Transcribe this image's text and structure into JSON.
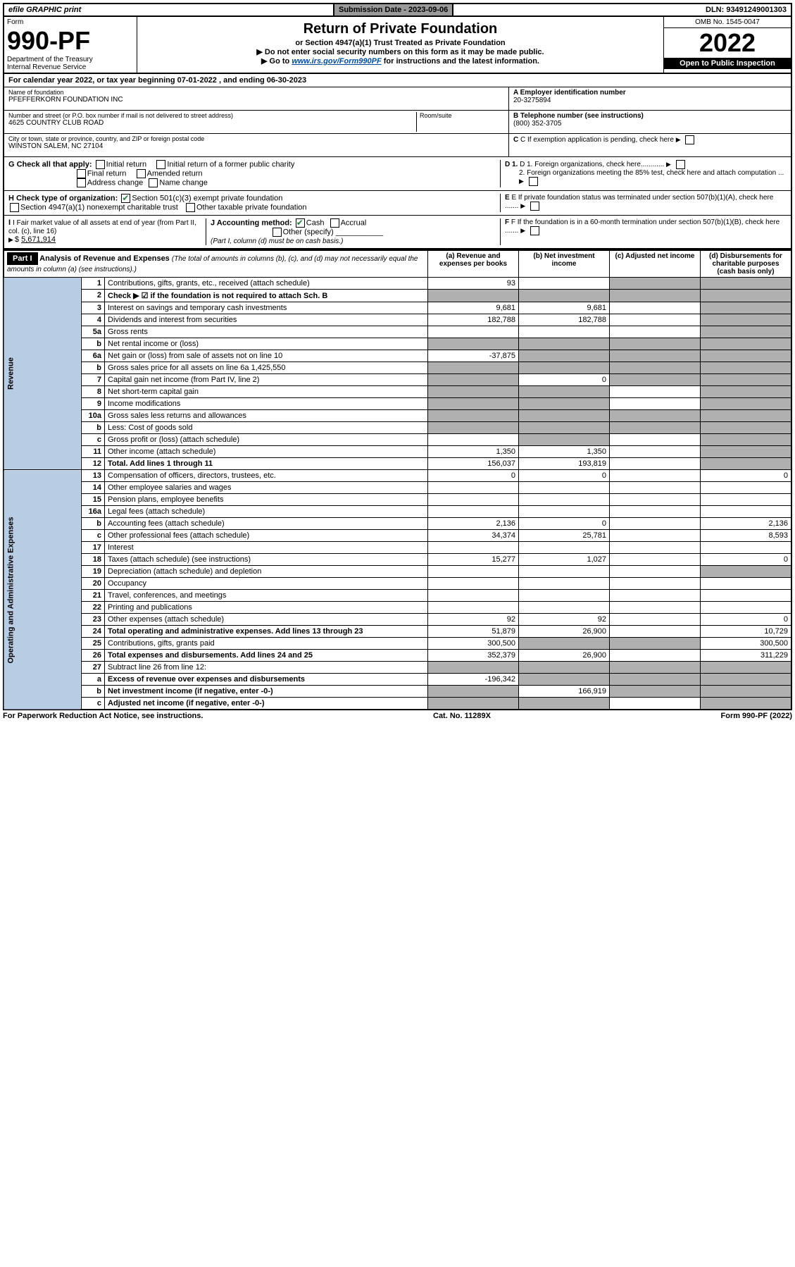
{
  "top": {
    "efile": "efile GRAPHIC print",
    "submission_label": "Submission Date - 2023-09-06",
    "dln": "DLN: 93491249001303"
  },
  "header": {
    "form_label": "Form",
    "form_number": "990-PF",
    "dept": "Department of the Treasury",
    "irs": "Internal Revenue Service",
    "title": "Return of Private Foundation",
    "subtitle": "or Section 4947(a)(1) Trust Treated as Private Foundation",
    "instr1": "▶ Do not enter social security numbers on this form as it may be made public.",
    "instr2_prefix": "▶ Go to ",
    "instr2_link": "www.irs.gov/Form990PF",
    "instr2_suffix": " for instructions and the latest information.",
    "omb": "OMB No. 1545-0047",
    "year": "2022",
    "open": "Open to Public Inspection"
  },
  "calendar": "For calendar year 2022, or tax year beginning 07-01-2022                      , and ending 06-30-2023",
  "entity": {
    "name_label": "Name of foundation",
    "name": "PFEFFERKORN FOUNDATION INC",
    "addr_label": "Number and street (or P.O. box number if mail is not delivered to street address)",
    "addr": "4625 COUNTRY CLUB ROAD",
    "room_label": "Room/suite",
    "city_label": "City or town, state or province, country, and ZIP or foreign postal code",
    "city": "WINSTON SALEM, NC  27104",
    "ein_label": "A Employer identification number",
    "ein": "20-3275894",
    "phone_label": "B Telephone number (see instructions)",
    "phone": "(800) 352-3705",
    "c_label": "C If exemption application is pending, check here",
    "d1": "D 1. Foreign organizations, check here............",
    "d2": "2. Foreign organizations meeting the 85% test, check here and attach computation ...",
    "e_label": "E If private foundation status was terminated under section 507(b)(1)(A), check here .......",
    "f_label": "F If the foundation is in a 60-month termination under section 507(b)(1)(B), check here ......."
  },
  "g_check": {
    "label": "G Check all that apply:",
    "opts": [
      "Initial return",
      "Initial return of a former public charity",
      "Final return",
      "Amended return",
      "Address change",
      "Name change"
    ]
  },
  "h_check": {
    "label": "H Check type of organization:",
    "opt1": "Section 501(c)(3) exempt private foundation",
    "opt2": "Section 4947(a)(1) nonexempt charitable trust",
    "opt3": "Other taxable private foundation"
  },
  "i_block": {
    "label": "I Fair market value of all assets at end of year (from Part II, col. (c), line 16)",
    "value": "5,671,914"
  },
  "j_block": {
    "label": "J Accounting method:",
    "cash": "Cash",
    "accrual": "Accrual",
    "other": "Other (specify)",
    "note": "(Part I, column (d) must be on cash basis.)"
  },
  "part1": {
    "label": "Part I",
    "title": "Analysis of Revenue and Expenses",
    "title_note": "(The total of amounts in columns (b), (c), and (d) may not necessarily equal the amounts in column (a) (see instructions).)",
    "col_a": "(a) Revenue and expenses per books",
    "col_b": "(b) Net investment income",
    "col_c": "(c) Adjusted net income",
    "col_d": "(d) Disbursements for charitable purposes (cash basis only)"
  },
  "side_labels": {
    "revenue": "Revenue",
    "opex": "Operating and Administrative Expenses"
  },
  "rows": [
    {
      "n": "1",
      "d": "Contributions, gifts, grants, etc., received (attach schedule)",
      "a": "93",
      "b": "",
      "c": "shaded",
      "dd": "shaded"
    },
    {
      "n": "2",
      "d": "Check ▶ ☑ if the foundation is not required to attach Sch. B",
      "a": "shaded",
      "b": "shaded",
      "c": "shaded",
      "dd": "shaded",
      "bold": true
    },
    {
      "n": "3",
      "d": "Interest on savings and temporary cash investments",
      "a": "9,681",
      "b": "9,681",
      "c": "",
      "dd": "shaded"
    },
    {
      "n": "4",
      "d": "Dividends and interest from securities",
      "a": "182,788",
      "b": "182,788",
      "c": "",
      "dd": "shaded"
    },
    {
      "n": "5a",
      "d": "Gross rents",
      "a": "",
      "b": "",
      "c": "",
      "dd": "shaded"
    },
    {
      "n": "b",
      "d": "Net rental income or (loss)",
      "a": "shaded",
      "b": "shaded",
      "c": "shaded",
      "dd": "shaded"
    },
    {
      "n": "6a",
      "d": "Net gain or (loss) from sale of assets not on line 10",
      "a": "-37,875",
      "b": "shaded",
      "c": "shaded",
      "dd": "shaded"
    },
    {
      "n": "b",
      "d": "Gross sales price for all assets on line 6a           1,425,550",
      "a": "shaded",
      "b": "shaded",
      "c": "shaded",
      "dd": "shaded"
    },
    {
      "n": "7",
      "d": "Capital gain net income (from Part IV, line 2)",
      "a": "shaded",
      "b": "0",
      "c": "shaded",
      "dd": "shaded"
    },
    {
      "n": "8",
      "d": "Net short-term capital gain",
      "a": "shaded",
      "b": "shaded",
      "c": "",
      "dd": "shaded"
    },
    {
      "n": "9",
      "d": "Income modifications",
      "a": "shaded",
      "b": "shaded",
      "c": "",
      "dd": "shaded"
    },
    {
      "n": "10a",
      "d": "Gross sales less returns and allowances",
      "a": "shaded",
      "b": "shaded",
      "c": "shaded",
      "dd": "shaded"
    },
    {
      "n": "b",
      "d": "Less: Cost of goods sold",
      "a": "shaded",
      "b": "shaded",
      "c": "shaded",
      "dd": "shaded"
    },
    {
      "n": "c",
      "d": "Gross profit or (loss) (attach schedule)",
      "a": "",
      "b": "shaded",
      "c": "",
      "dd": "shaded"
    },
    {
      "n": "11",
      "d": "Other income (attach schedule)",
      "a": "1,350",
      "b": "1,350",
      "c": "",
      "dd": "shaded"
    },
    {
      "n": "12",
      "d": "Total. Add lines 1 through 11",
      "a": "156,037",
      "b": "193,819",
      "c": "",
      "dd": "shaded",
      "bold": true
    },
    {
      "n": "13",
      "d": "Compensation of officers, directors, trustees, etc.",
      "a": "0",
      "b": "0",
      "c": "",
      "dd": "0"
    },
    {
      "n": "14",
      "d": "Other employee salaries and wages",
      "a": "",
      "b": "",
      "c": "",
      "dd": ""
    },
    {
      "n": "15",
      "d": "Pension plans, employee benefits",
      "a": "",
      "b": "",
      "c": "",
      "dd": ""
    },
    {
      "n": "16a",
      "d": "Legal fees (attach schedule)",
      "a": "",
      "b": "",
      "c": "",
      "dd": ""
    },
    {
      "n": "b",
      "d": "Accounting fees (attach schedule)",
      "a": "2,136",
      "b": "0",
      "c": "",
      "dd": "2,136"
    },
    {
      "n": "c",
      "d": "Other professional fees (attach schedule)",
      "a": "34,374",
      "b": "25,781",
      "c": "",
      "dd": "8,593"
    },
    {
      "n": "17",
      "d": "Interest",
      "a": "",
      "b": "",
      "c": "",
      "dd": ""
    },
    {
      "n": "18",
      "d": "Taxes (attach schedule) (see instructions)",
      "a": "15,277",
      "b": "1,027",
      "c": "",
      "dd": "0"
    },
    {
      "n": "19",
      "d": "Depreciation (attach schedule) and depletion",
      "a": "",
      "b": "",
      "c": "",
      "dd": "shaded"
    },
    {
      "n": "20",
      "d": "Occupancy",
      "a": "",
      "b": "",
      "c": "",
      "dd": ""
    },
    {
      "n": "21",
      "d": "Travel, conferences, and meetings",
      "a": "",
      "b": "",
      "c": "",
      "dd": ""
    },
    {
      "n": "22",
      "d": "Printing and publications",
      "a": "",
      "b": "",
      "c": "",
      "dd": ""
    },
    {
      "n": "23",
      "d": "Other expenses (attach schedule)",
      "a": "92",
      "b": "92",
      "c": "",
      "dd": "0"
    },
    {
      "n": "24",
      "d": "Total operating and administrative expenses. Add lines 13 through 23",
      "a": "51,879",
      "b": "26,900",
      "c": "",
      "dd": "10,729",
      "bold": true
    },
    {
      "n": "25",
      "d": "Contributions, gifts, grants paid",
      "a": "300,500",
      "b": "shaded",
      "c": "shaded",
      "dd": "300,500"
    },
    {
      "n": "26",
      "d": "Total expenses and disbursements. Add lines 24 and 25",
      "a": "352,379",
      "b": "26,900",
      "c": "",
      "dd": "311,229",
      "bold": true
    },
    {
      "n": "27",
      "d": "Subtract line 26 from line 12:",
      "a": "shaded",
      "b": "shaded",
      "c": "shaded",
      "dd": "shaded"
    },
    {
      "n": "a",
      "d": "Excess of revenue over expenses and disbursements",
      "a": "-196,342",
      "b": "shaded",
      "c": "shaded",
      "dd": "shaded",
      "bold": true
    },
    {
      "n": "b",
      "d": "Net investment income (if negative, enter -0-)",
      "a": "shaded",
      "b": "166,919",
      "c": "shaded",
      "dd": "shaded",
      "bold": true
    },
    {
      "n": "c",
      "d": "Adjusted net income (if negative, enter -0-)",
      "a": "shaded",
      "b": "shaded",
      "c": "",
      "dd": "shaded",
      "bold": true
    }
  ],
  "footer": {
    "left": "For Paperwork Reduction Act Notice, see instructions.",
    "center": "Cat. No. 11289X",
    "right": "Form 990-PF (2022)"
  }
}
